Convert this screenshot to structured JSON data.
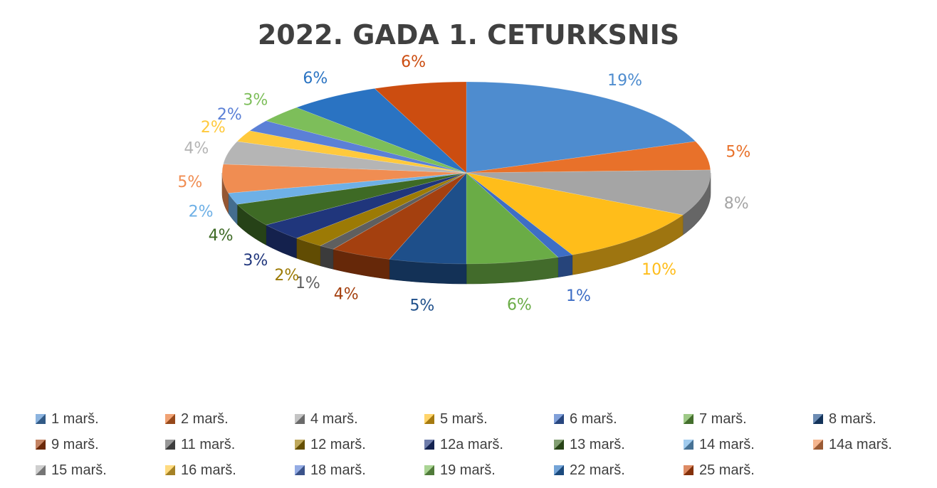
{
  "chart_data": {
    "type": "pie",
    "style": "3d-exploded-none",
    "title": "2022. GADA 1. CETURKSNIS",
    "legend_position": "bottom",
    "slices": [
      {
        "label": "1 marš.",
        "value": 19,
        "display": "19%",
        "color": "#4e8ccf"
      },
      {
        "label": "2 marš.",
        "value": 5,
        "display": "5%",
        "color": "#e8712a"
      },
      {
        "label": "4 marš.",
        "value": 8,
        "display": "8%",
        "color": "#a5a5a5"
      },
      {
        "label": "5 marš.",
        "value": 10,
        "display": "10%",
        "color": "#ffbd1a"
      },
      {
        "label": "6 marš.",
        "value": 1,
        "display": "1%",
        "color": "#3e6ec5"
      },
      {
        "label": "7 marš.",
        "value": 6,
        "display": "6%",
        "color": "#6aac46"
      },
      {
        "label": "8 marš.",
        "value": 5,
        "display": "5%",
        "color": "#1e4f8a"
      },
      {
        "label": "9 marš.",
        "value": 4,
        "display": "4%",
        "color": "#a4400f"
      },
      {
        "label": "11 marš.",
        "value": 1,
        "display": "1%",
        "color": "#5f5f5f"
      },
      {
        "label": "12 marš.",
        "value": 2,
        "display": "2%",
        "color": "#9c7a05"
      },
      {
        "label": "12a marš.",
        "value": 3,
        "display": "3%",
        "color": "#20367c"
      },
      {
        "label": "13 marš.",
        "value": 4,
        "display": "4%",
        "color": "#3e6a25"
      },
      {
        "label": "14 marš.",
        "value": 2,
        "display": "2%",
        "color": "#6eb0e6"
      },
      {
        "label": "14a marš.",
        "value": 5,
        "display": "5%",
        "color": "#f08d52"
      },
      {
        "label": "15 marš.",
        "value": 4,
        "display": "4%",
        "color": "#b5b5b5"
      },
      {
        "label": "16 marš.",
        "value": 2,
        "display": "2%",
        "color": "#ffc93c"
      },
      {
        "label": "18 marš.",
        "value": 2,
        "display": "2%",
        "color": "#5b80d6"
      },
      {
        "label": "19 marš.",
        "value": 3,
        "display": "3%",
        "color": "#7dbe5a"
      },
      {
        "label": "22 marš.",
        "value": 6,
        "display": "6%",
        "color": "#2a73c2"
      },
      {
        "label": "25 marš.",
        "value": 6,
        "display": "6%",
        "color": "#cc4d10"
      }
    ]
  }
}
